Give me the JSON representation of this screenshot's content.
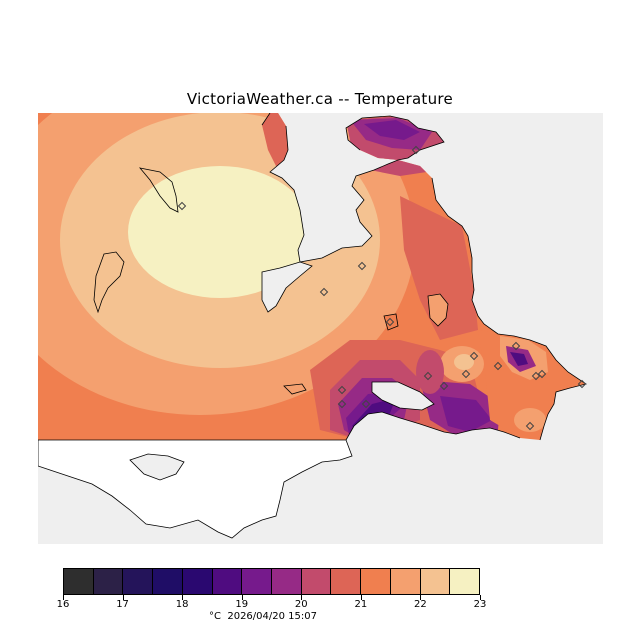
{
  "title": "VictoriaWeather.ca -- Temperature",
  "footer": {
    "unit": "°C",
    "timestamp": "2026/04/20 15:07"
  },
  "colorbar": {
    "labels": [
      "16",
      "17",
      "18",
      "19",
      "20",
      "21",
      "22",
      "23"
    ],
    "colors": [
      "#2e2e2e",
      "#2c2147",
      "#24145a",
      "#1f0d66",
      "#2a0870",
      "#4f0c80",
      "#761a8c",
      "#962a86",
      "#c24b6c",
      "#dd6556",
      "#f07f4f",
      "#f4a06f",
      "#f4c291",
      "#f6f1c2"
    ]
  },
  "map": {
    "ocean_color": "#efefef",
    "stations": [
      {
        "id": "s1"
      },
      {
        "id": "s2"
      },
      {
        "id": "s3"
      },
      {
        "id": "s4"
      },
      {
        "id": "s5"
      },
      {
        "id": "s6"
      },
      {
        "id": "s7"
      },
      {
        "id": "s8"
      },
      {
        "id": "s9"
      },
      {
        "id": "s10"
      },
      {
        "id": "s11"
      },
      {
        "id": "s12"
      },
      {
        "id": "s13"
      },
      {
        "id": "s14"
      },
      {
        "id": "s15"
      },
      {
        "id": "s16"
      },
      {
        "id": "s17"
      },
      {
        "id": "s18"
      }
    ]
  }
}
